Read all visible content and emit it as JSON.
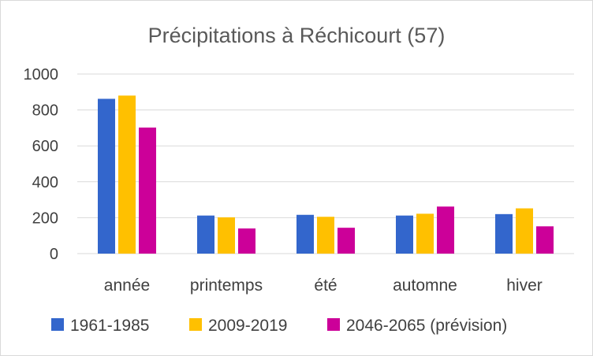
{
  "chart_data": {
    "type": "bar",
    "title": "Précipitations à Réchicourt (57)",
    "categories": [
      "année",
      "printemps",
      "été",
      "automne",
      "hiver"
    ],
    "series": [
      {
        "name": "1961-1985",
        "color": "#3366cc",
        "values": [
          862,
          212,
          216,
          212,
          220
        ]
      },
      {
        "name": "2009-2019",
        "color": "#ffc000",
        "values": [
          880,
          202,
          205,
          222,
          252
        ]
      },
      {
        "name": "2046-2065 (prévision)",
        "color": "#cc0099",
        "values": [
          702,
          140,
          144,
          262,
          152
        ]
      }
    ],
    "yticks": [
      "0",
      "200",
      "400",
      "600",
      "800",
      "1000"
    ],
    "ylim": [
      0,
      1000
    ],
    "grid": true,
    "legend_position": "bottom"
  }
}
